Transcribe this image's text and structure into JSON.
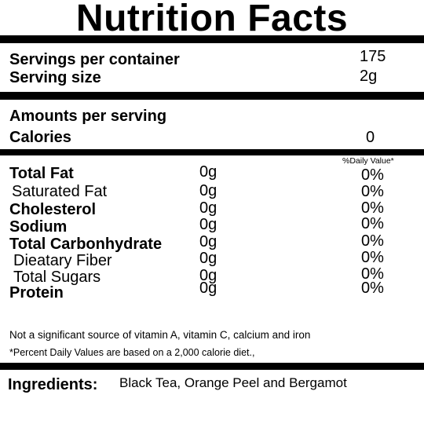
{
  "label": {
    "title": "Nutrition Facts",
    "servings_per_container_label": "Servings per container",
    "servings_per_container_value": "175",
    "serving_size_label": "Serving size",
    "serving_size_value": "2g",
    "amounts_per_serving": "Amounts per serving",
    "calories_label": "Calories",
    "calories_value": "0",
    "daily_value_header": "%Daily Value*",
    "nutrients": [
      {
        "name": "Total Fat",
        "amount": "0g",
        "dv": "0%"
      },
      {
        "name": "Saturated Fat",
        "amount": "0g",
        "dv": "0%"
      },
      {
        "name": "Cholesterol",
        "amount": "0g",
        "dv": "0%"
      },
      {
        "name": "Sodium",
        "amount": "0g",
        "dv": "0%"
      },
      {
        "name": "Total Carbonhydrate",
        "amount": "0g",
        "dv": "0%"
      },
      {
        "name": "Dieatary Fiber",
        "amount": "0g",
        "dv": "0%"
      },
      {
        "name": "Total Sugars",
        "amount": "0g",
        "dv": "0%"
      },
      {
        "name": "Protein",
        "amount": "0g",
        "dv": "0%"
      }
    ],
    "vitamin_note": "Not a significant source of vitamin A, vitamin C, calcium and iron",
    "dv_footnote": "*Percent Daily Values are based on a 2,000 calorie diet.,",
    "ingredients_label": "Ingredients:",
    "ingredients_value": "Black Tea, Orange Peel and Bergamot"
  }
}
